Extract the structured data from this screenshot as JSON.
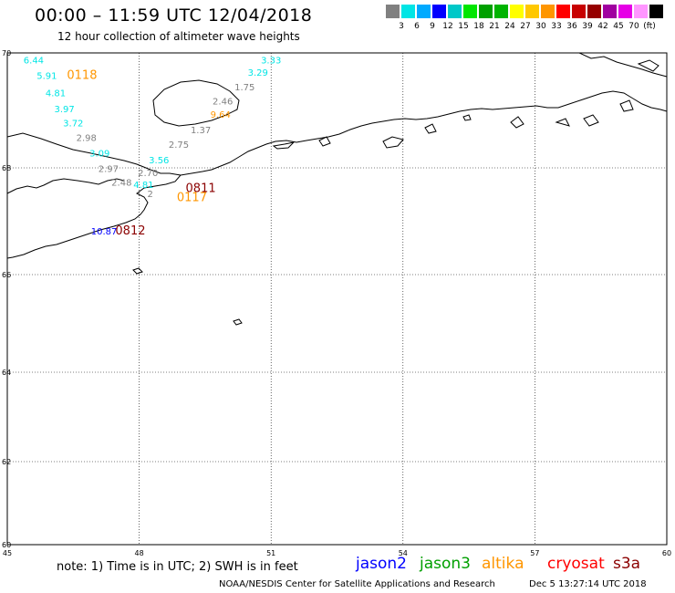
{
  "header": {
    "title": "00:00 – 11:59 UTC 12/04/2018",
    "subtitle": "12 hour collection of altimeter wave heights"
  },
  "color_scale": {
    "colors": [
      "#808080",
      "#00e5e5",
      "#00aaff",
      "#0000ff",
      "#00c8c8",
      "#00e600",
      "#00a000",
      "#00b400",
      "#ffff00",
      "#ffc800",
      "#ff9600",
      "#ff0000",
      "#c80000",
      "#960000",
      "#a000a0",
      "#e600e6",
      "#ff96ff",
      "#000000"
    ],
    "labels": [
      "3",
      "6",
      "9",
      "12",
      "15",
      "18",
      "21",
      "24",
      "27",
      "30",
      "33",
      "36",
      "39",
      "42",
      "45",
      "70",
      "(ft)"
    ]
  },
  "axes": {
    "lon_ticks": [
      "45",
      "48",
      "51",
      "54",
      "57",
      "60"
    ],
    "lat_ticks": [
      "70",
      "68",
      "66",
      "64",
      "62",
      "60"
    ]
  },
  "observations": [
    {
      "text": "6.44",
      "color": "#00e5e5",
      "lon": 45.6,
      "lat": 69.82
    },
    {
      "text": "5.91",
      "color": "#00e5e5",
      "lon": 45.9,
      "lat": 69.55
    },
    {
      "text": "4.81",
      "color": "#00e5e5",
      "lon": 46.1,
      "lat": 69.25
    },
    {
      "text": "3.97",
      "color": "#00e5e5",
      "lon": 46.3,
      "lat": 68.97
    },
    {
      "text": "3.72",
      "color": "#00e5e5",
      "lon": 46.5,
      "lat": 68.72
    },
    {
      "text": "2.98",
      "color": "#808080",
      "lon": 46.8,
      "lat": 68.47
    },
    {
      "text": "3.09",
      "color": "#00e5e5",
      "lon": 47.1,
      "lat": 68.2
    },
    {
      "text": "2.97",
      "color": "#808080",
      "lon": 47.3,
      "lat": 67.92
    },
    {
      "text": "2.48",
      "color": "#808080",
      "lon": 47.6,
      "lat": 67.67
    },
    {
      "text": "4.81",
      "color": "#00e5e5",
      "lon": 48.1,
      "lat": 67.62
    },
    {
      "text": "2",
      "color": "#808080",
      "lon": 48.25,
      "lat": 67.45
    },
    {
      "text": "2.70",
      "color": "#808080",
      "lon": 48.2,
      "lat": 67.85
    },
    {
      "text": "3.56",
      "color": "#00e5e5",
      "lon": 48.45,
      "lat": 68.08
    },
    {
      "text": "2.75",
      "color": "#808080",
      "lon": 48.9,
      "lat": 68.35
    },
    {
      "text": "1.37",
      "color": "#808080",
      "lon": 49.4,
      "lat": 68.6
    },
    {
      "text": "9.64",
      "color": "#ff9600",
      "lon": 49.85,
      "lat": 68.87
    },
    {
      "text": "2.46",
      "color": "#808080",
      "lon": 49.9,
      "lat": 69.1
    },
    {
      "text": "1.75",
      "color": "#808080",
      "lon": 50.4,
      "lat": 69.35
    },
    {
      "text": "3.29",
      "color": "#00e5e5",
      "lon": 50.7,
      "lat": 69.6
    },
    {
      "text": "3.33",
      "color": "#00e5e5",
      "lon": 51.0,
      "lat": 69.82
    },
    {
      "text": "10.87",
      "color": "#0000ff",
      "lon": 47.2,
      "lat": 66.75
    }
  ],
  "pass_times": [
    {
      "text": "0118",
      "color": "#ff9600",
      "lon": 46.7,
      "lat": 69.55
    },
    {
      "text": "0811",
      "color": "#8b0000",
      "lon": 49.4,
      "lat": 67.55
    },
    {
      "text": "0117",
      "color": "#ff9600",
      "lon": 49.2,
      "lat": 67.38
    },
    {
      "text": "0812",
      "color": "#8b0000",
      "lon": 47.8,
      "lat": 66.75
    }
  ],
  "footer": {
    "note": "note:  1) Time is in UTC;  2) SWH is in feet",
    "legend": [
      {
        "name": "jason2",
        "color": "#0000ff"
      },
      {
        "name": "jason3",
        "color": "#00a000"
      },
      {
        "name": "altika",
        "color": "#ff9600"
      },
      {
        "name": "cryosat",
        "color": "#ff0000"
      },
      {
        "name": "s3a",
        "color": "#8b0000"
      }
    ],
    "credit": "NOAA/NESDIS Center for Satellite Applications and Research",
    "generated": "Dec  5 13:27:14 UTC 2018"
  }
}
